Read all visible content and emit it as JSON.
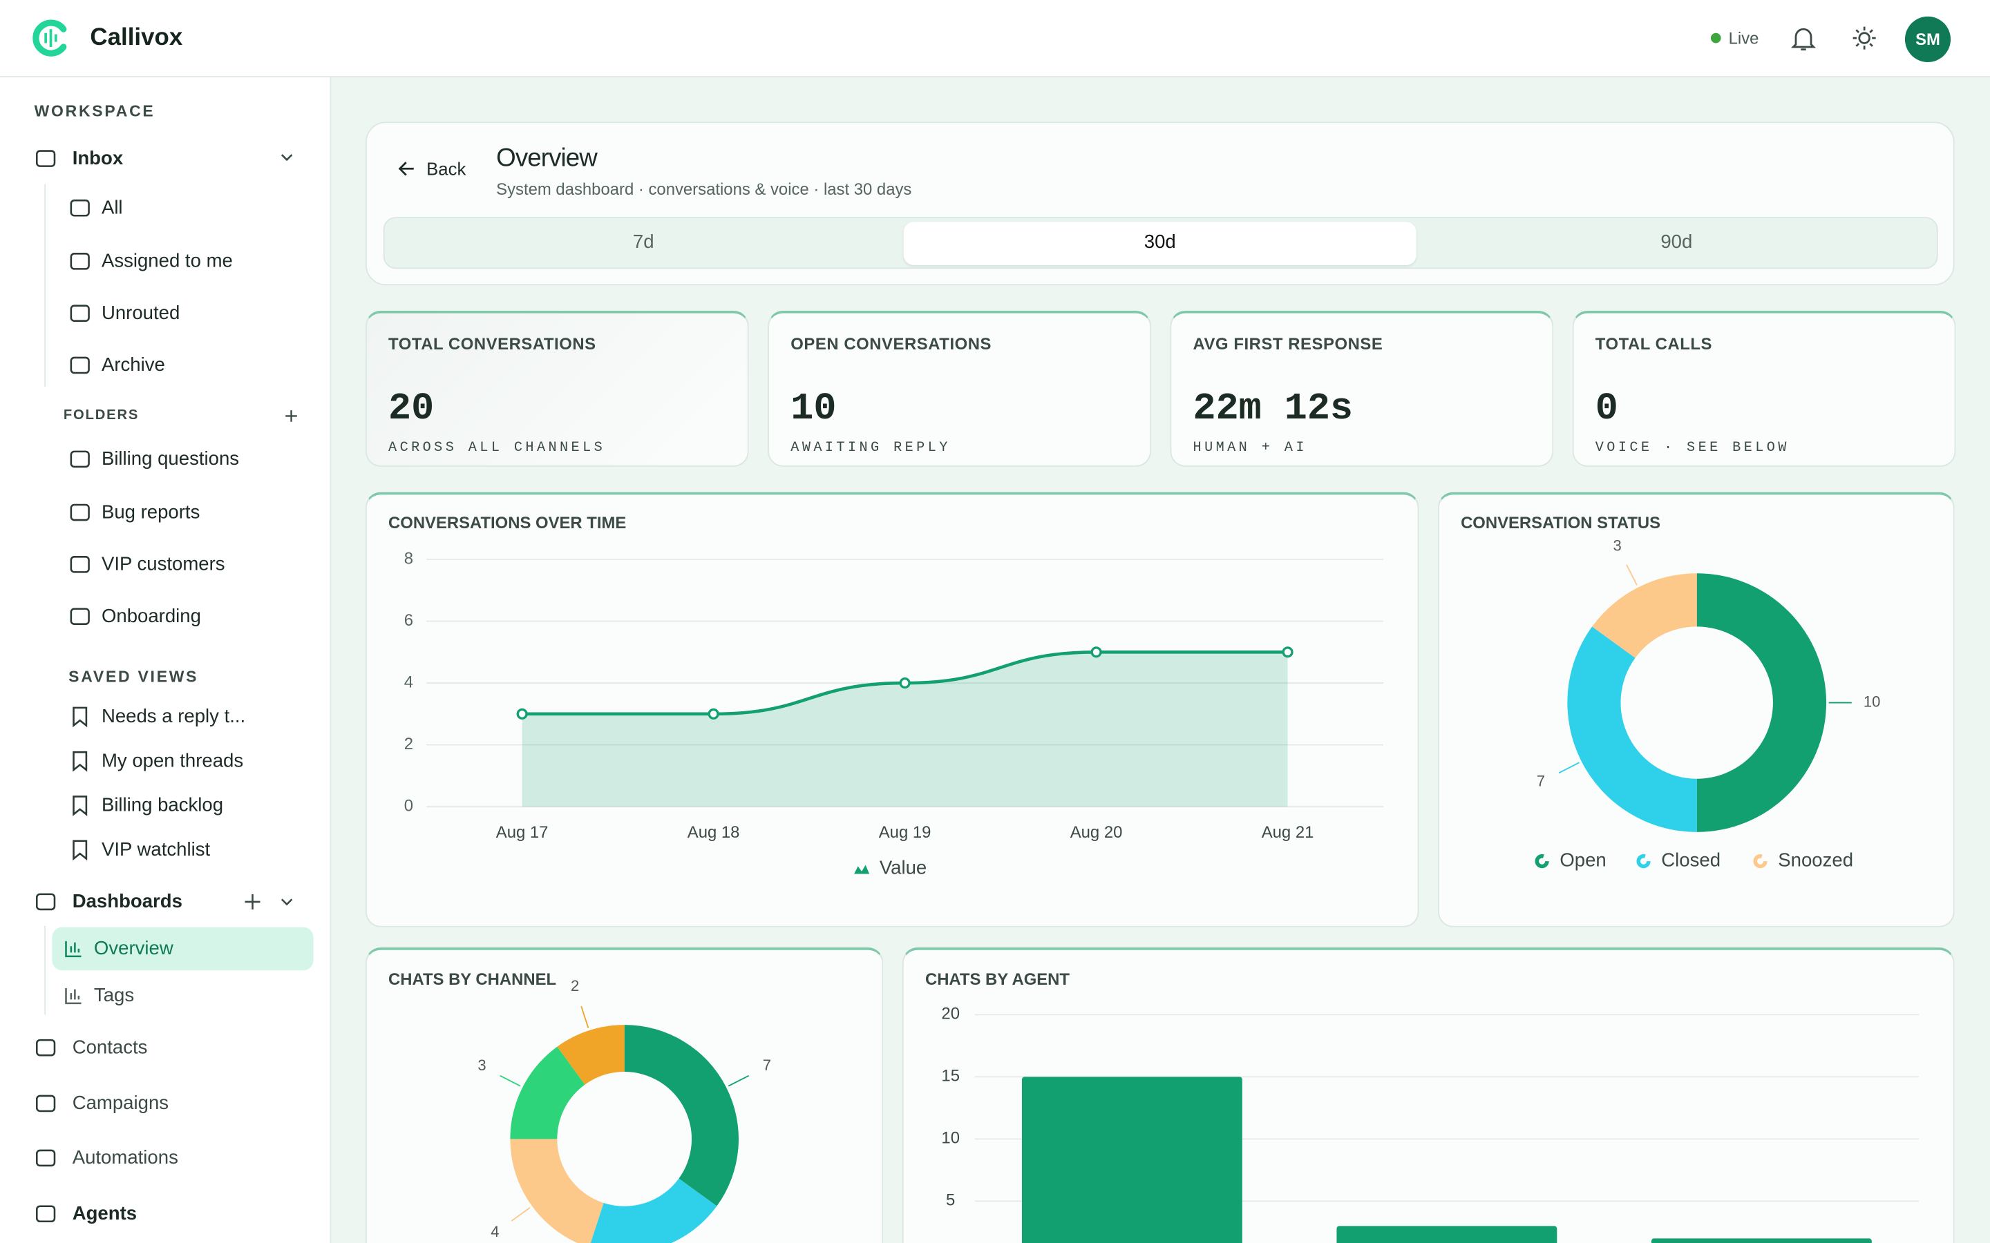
{
  "app": {
    "name": "Callivox",
    "status": "Live",
    "avatar": "SM"
  },
  "sidebar": {
    "workspace": "WORKSPACE",
    "inbox": {
      "label": "Inbox",
      "items": [
        "All",
        "Assigned to me",
        "Unrouted",
        "Archive"
      ]
    },
    "folders": {
      "label": "FOLDERS",
      "items": [
        "Billing questions",
        "Bug reports",
        "VIP customers",
        "Onboarding"
      ]
    },
    "saved_views": {
      "label": "SAVED VIEWS",
      "items": [
        "Needs a reply t...",
        "My open threads",
        "Billing backlog",
        "VIP watchlist"
      ]
    },
    "dashboards": {
      "label": "Dashboards",
      "items": [
        "Overview",
        "Tags"
      ],
      "active": 0
    },
    "nav": [
      "Contacts",
      "Campaigns",
      "Automations",
      "Agents"
    ]
  },
  "page": {
    "back": "Back",
    "title": "Overview",
    "subtitle": "System dashboard · conversations & voice · last 30 days",
    "ranges": [
      "7d",
      "30d",
      "90d"
    ],
    "active_range": 1
  },
  "kpis": [
    {
      "label": "TOTAL CONVERSATIONS",
      "value": 20,
      "note": "ACROSS ALL CHANNELS"
    },
    {
      "label": "OPEN CONVERSATIONS",
      "value": 10,
      "note": "AWAITING REPLY"
    },
    {
      "label": "AVG FIRST RESPONSE",
      "value": "22m 12s",
      "note": "HUMAN + AI"
    },
    {
      "label": "TOTAL CALLS",
      "value": 0,
      "note": "VOICE · SEE BELOW"
    }
  ],
  "charts": [
    {
      "type": "line",
      "title": "CONVERSATIONS OVER TIME",
      "categories": [
        "Aug 17",
        "Aug 18",
        "Aug 19",
        "Aug 20",
        "Aug 21"
      ],
      "series": [
        {
          "name": "Value",
          "color": "#12a070",
          "values": [
            3,
            3,
            4,
            5,
            5
          ]
        }
      ],
      "ylim": [
        0,
        8
      ],
      "yticks": [
        0,
        2,
        4,
        6,
        8
      ],
      "grid": true
    },
    {
      "type": "pie",
      "title": "CONVERSATION STATUS",
      "categories": [
        "Open",
        "Closed",
        "Snoozed"
      ],
      "values": [
        10,
        7,
        3
      ],
      "colors": [
        "#12a070",
        "#2fd0ea",
        "#fdc98a"
      ]
    },
    {
      "type": "pie",
      "title": "CHATS BY CHANNEL",
      "categories": [
        null,
        null,
        null,
        null,
        null
      ],
      "values": [
        7,
        4,
        4,
        3,
        2
      ],
      "colors": [
        "#12a070",
        "#2fd0ea",
        "#fdc98a",
        "#2ed47a",
        "#f0a528"
      ]
    },
    {
      "type": "bar",
      "title": "CHATS BY AGENT",
      "categories": [
        null,
        null,
        null
      ],
      "values": [
        15,
        3,
        2
      ],
      "color": "#12a070",
      "ylim": [
        0,
        20
      ],
      "yticks": [
        5,
        10,
        15,
        20
      ],
      "grid": true
    }
  ]
}
